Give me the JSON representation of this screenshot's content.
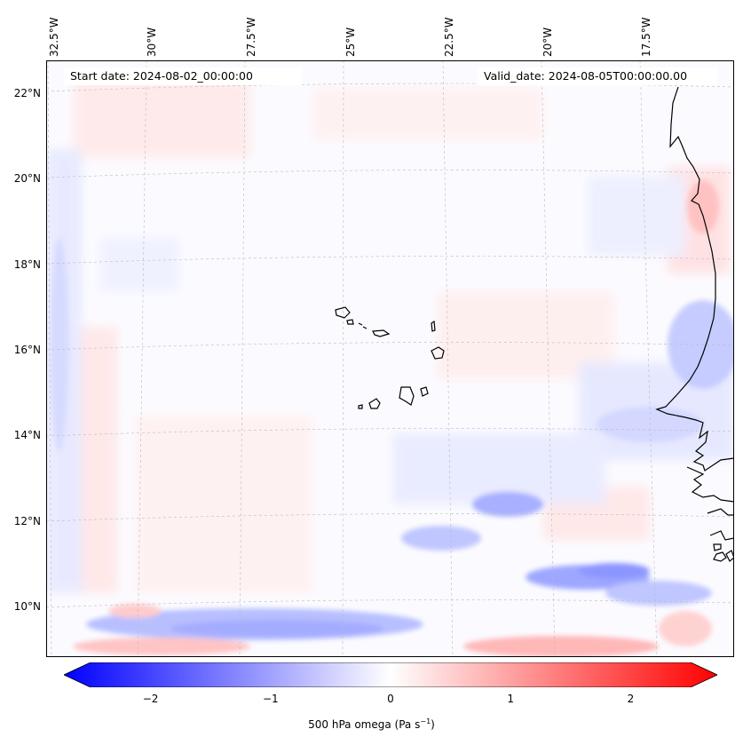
{
  "map": {
    "start_date": "Start date: 2024-08-02_00:00:00",
    "valid_date": "Valid_date: 2024-08-05T00:00:00.00",
    "lon_labels": [
      "32.5°W",
      "30°W",
      "27.5°W",
      "25°W",
      "22.5°W",
      "20°W",
      "17.5°W"
    ],
    "lat_labels": [
      "22°N",
      "20°N",
      "18°N",
      "16°N",
      "14°N",
      "12°N",
      "10°N"
    ],
    "field": "500 hPa omega",
    "units": "(Pa s",
    "units_exp": "−1",
    "units_close": ")"
  },
  "colorbar": {
    "ticks": [
      "−2",
      "−1",
      "0",
      "1",
      "2"
    ],
    "min": -2.75,
    "max": 2.75,
    "colors": {
      "neg": "#0000ff",
      "mid": "#ffffff",
      "pos": "#ff0000"
    }
  }
}
